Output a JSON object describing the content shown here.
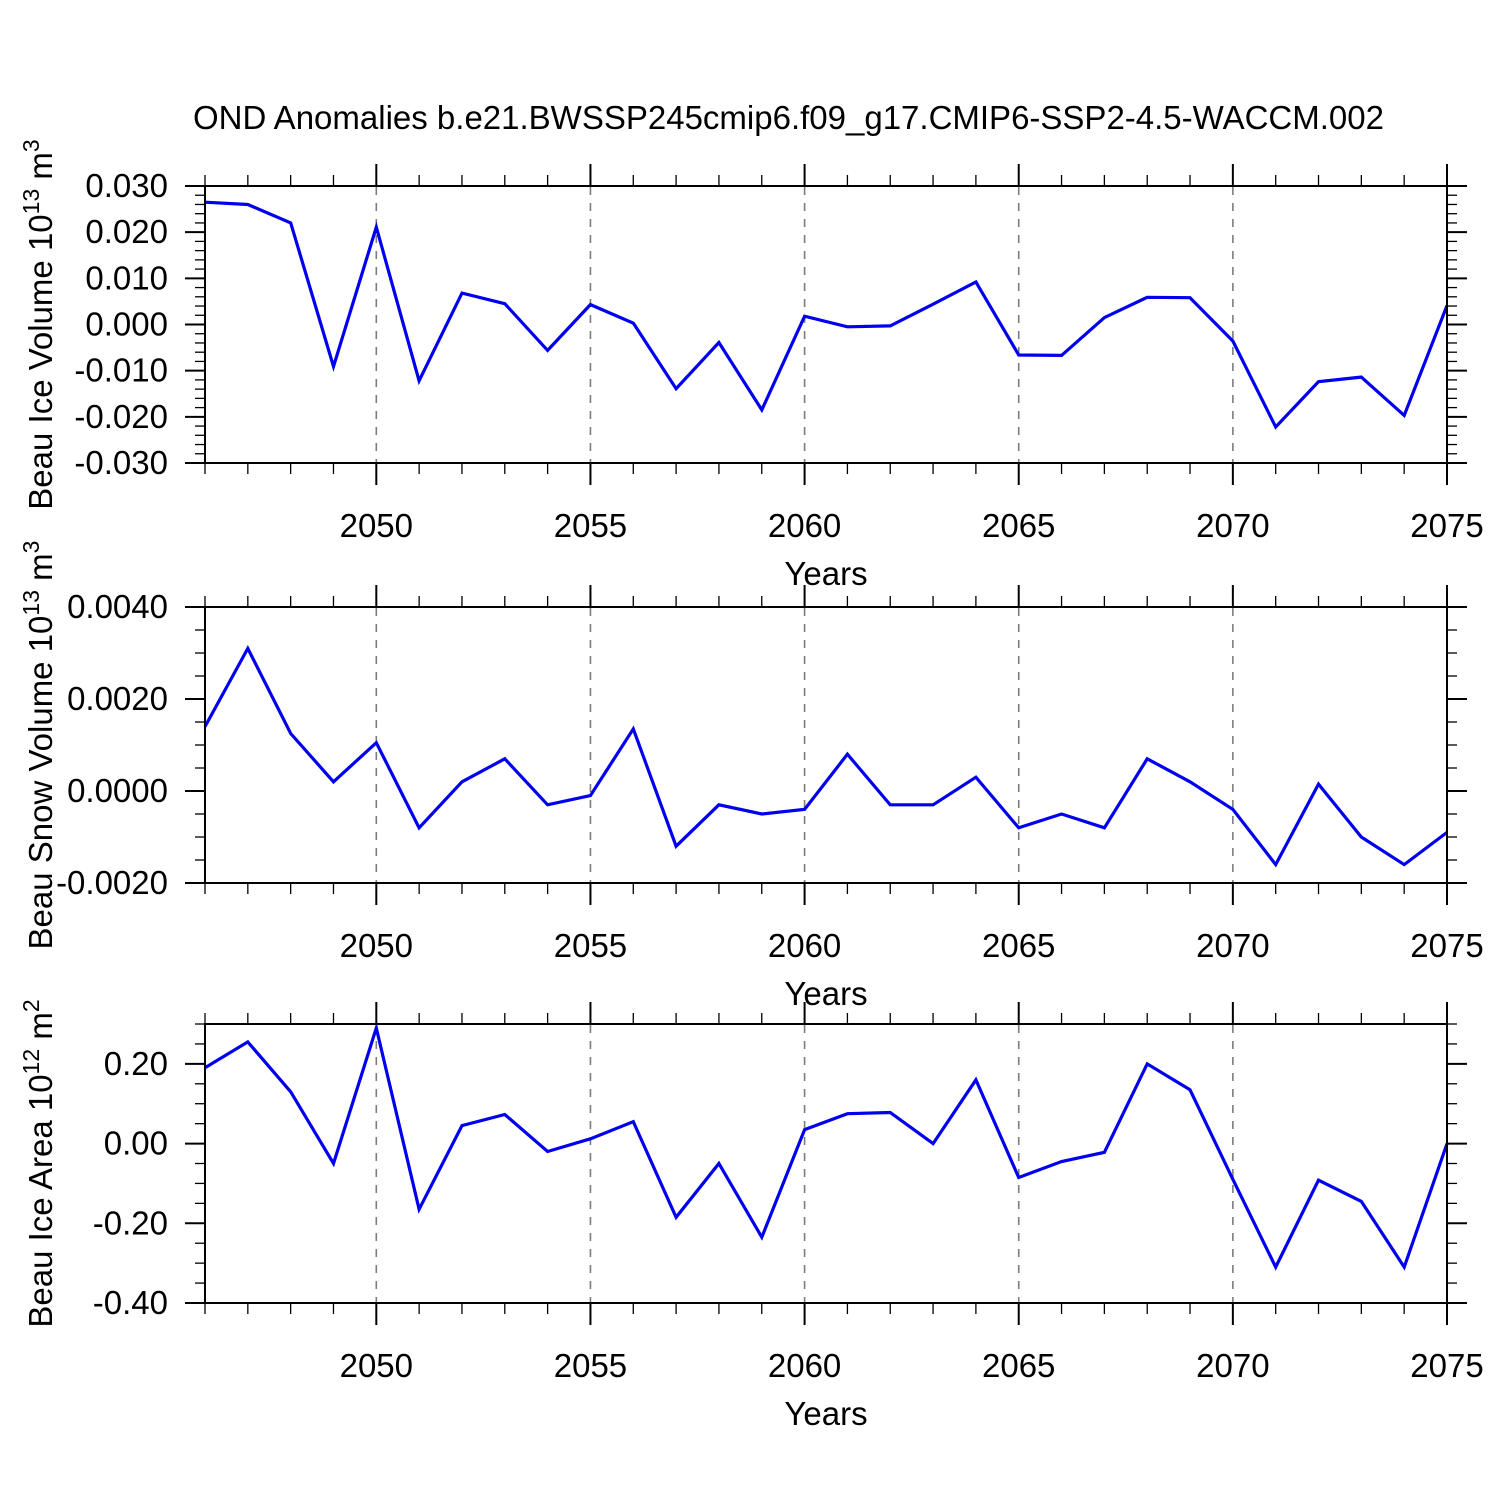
{
  "title": "OND Anomalies b.e21.BWSSP245cmip6.f09_g17.CMIP6-SSP2-4.5-WACCM.002",
  "figure": {
    "background": "#ffffff",
    "line_color": "#0000EE",
    "frame_color": "#000000",
    "gridline_color": "#7d7d7d",
    "text_color": "#000000"
  },
  "x_axis": {
    "range": [
      2046,
      2075
    ],
    "major_tick_years": [
      2050,
      2055,
      2060,
      2065,
      2070,
      2075
    ],
    "major_tick_labels": [
      "2050",
      "2055",
      "2060",
      "2065",
      "2070",
      "2075"
    ],
    "minor_tick_step": 1,
    "gridline_years": [
      2050,
      2055,
      2060,
      2065,
      2070
    ]
  },
  "chart_data": [
    {
      "type": "line",
      "id": "beau-ice-volume",
      "ylabel_text": "Beau Ice Volume 10^13 m^3",
      "ylabel_segments": [
        {
          "t": "Beau Ice Volume 10",
          "sup": false
        },
        {
          "t": "13",
          "sup": true
        },
        {
          "t": " m",
          "sup": false
        },
        {
          "t": "3",
          "sup": true
        }
      ],
      "xlabel": "Years",
      "x": [
        2046,
        2047,
        2048,
        2049,
        2050,
        2051,
        2052,
        2053,
        2054,
        2055,
        2056,
        2057,
        2058,
        2059,
        2060,
        2061,
        2062,
        2063,
        2064,
        2065,
        2066,
        2067,
        2068,
        2069,
        2070,
        2071,
        2072,
        2073,
        2074,
        2075
      ],
      "values": [
        0.0265,
        0.026,
        0.022,
        -0.0091,
        0.0211,
        -0.0122,
        0.0068,
        0.0045,
        -0.0056,
        0.0043,
        0.0003,
        -0.0139,
        -0.0039,
        -0.0185,
        0.0018,
        -0.0005,
        -0.0003,
        0.0044,
        0.0092,
        -0.0066,
        -0.0067,
        0.0015,
        0.0059,
        0.0058,
        -0.0036,
        -0.0222,
        -0.0124,
        -0.0114,
        -0.0197,
        0.0041
      ],
      "ylim": [
        -0.03,
        0.03
      ],
      "ytick_major_values": [
        -0.03,
        -0.02,
        -0.01,
        0,
        0.01,
        0.02,
        0.03
      ],
      "ytick_labels": [
        "-0.030",
        "-0.020",
        "-0.010",
        "0.000",
        "0.010",
        "0.020",
        "0.030"
      ],
      "ytick_minor_step": 0.002
    },
    {
      "type": "line",
      "id": "beau-snow-volume",
      "ylabel_text": "Beau Snow Volume 10^13 m^3",
      "ylabel_segments": [
        {
          "t": "Beau Snow Volume 10",
          "sup": false
        },
        {
          "t": "13",
          "sup": true
        },
        {
          "t": " m",
          "sup": false
        },
        {
          "t": "3",
          "sup": true
        }
      ],
      "xlabel": "Years",
      "x": [
        2046,
        2047,
        2048,
        2049,
        2050,
        2051,
        2052,
        2053,
        2054,
        2055,
        2056,
        2057,
        2058,
        2059,
        2060,
        2061,
        2062,
        2063,
        2064,
        2065,
        2066,
        2067,
        2068,
        2069,
        2070,
        2071,
        2072,
        2073,
        2074,
        2075
      ],
      "values": [
        0.0014,
        0.0031,
        0.00125,
        0.0002,
        0.00105,
        -0.0008,
        0.0002,
        0.0007,
        -0.0003,
        -0.0001,
        0.00135,
        -0.0012,
        -0.0003,
        -0.0005,
        -0.0004,
        0.0008,
        -0.0003,
        -0.0003,
        0.0003,
        -0.0008,
        -0.0005,
        -0.0008,
        0.0007,
        0.0002,
        -0.0004,
        -0.0016,
        0.00015,
        -0.001,
        -0.0016,
        -0.0009
      ],
      "ylim": [
        -0.002,
        0.004
      ],
      "ytick_major_values": [
        -0.002,
        0,
        0.002,
        0.004
      ],
      "ytick_labels": [
        "-0.0020",
        "0.0000",
        "0.0020",
        "0.0040"
      ],
      "ytick_minor_step": 0.0005
    },
    {
      "type": "line",
      "id": "beau-ice-area",
      "ylabel_text": "Beau Ice Area 10^12 m^2",
      "ylabel_segments": [
        {
          "t": "Beau Ice Area 10",
          "sup": false
        },
        {
          "t": "12",
          "sup": true
        },
        {
          "t": " m",
          "sup": false
        },
        {
          "t": "2",
          "sup": true
        }
      ],
      "xlabel": "Years",
      "x": [
        2046,
        2047,
        2048,
        2049,
        2050,
        2051,
        2052,
        2053,
        2054,
        2055,
        2056,
        2057,
        2058,
        2059,
        2060,
        2061,
        2062,
        2063,
        2064,
        2065,
        2066,
        2067,
        2068,
        2069,
        2070,
        2071,
        2072,
        2073,
        2074,
        2075
      ],
      "values": [
        0.19,
        0.255,
        0.13,
        -0.05,
        0.29,
        -0.165,
        0.045,
        0.073,
        -0.02,
        0.012,
        0.055,
        -0.185,
        -0.05,
        -0.235,
        0.035,
        0.075,
        0.078,
        0.0,
        0.16,
        -0.085,
        -0.045,
        -0.022,
        0.2,
        0.135,
        -0.09,
        -0.31,
        -0.092,
        -0.145,
        -0.31,
        0.0
      ],
      "ylim": [
        -0.4,
        0.3
      ],
      "ytick_major_values": [
        -0.4,
        -0.2,
        0,
        0.2
      ],
      "ytick_labels": [
        "-0.40",
        "-0.20",
        "0.00",
        "0.20"
      ],
      "ytick_minor_step": 0.05
    }
  ]
}
